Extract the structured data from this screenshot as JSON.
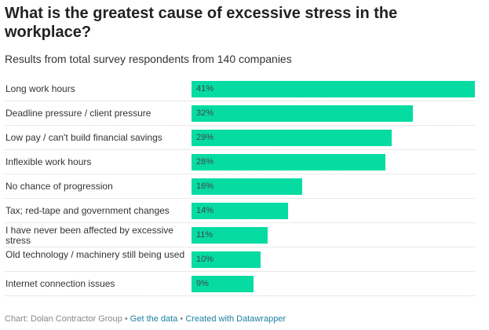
{
  "header": {
    "title": "What is the greatest cause of excessive stress in the workplace?",
    "subtitle": "Results from total survey respondents from 140 companies"
  },
  "footer": {
    "source": "Chart: Dolan Contractor Group",
    "separator": "•",
    "get_data_label": "Get the data",
    "created_with_label": "Created with Datawrapper"
  },
  "colors": {
    "bar": "#06dca2",
    "link": "#1d81a2"
  },
  "chart_data": {
    "type": "bar",
    "orientation": "horizontal",
    "title": "What is the greatest cause of excessive stress in the workplace?",
    "subtitle": "Results from total survey respondents from 140 companies",
    "categories": [
      "Long work hours",
      "Deadline pressure / client pressure",
      "Low pay / can't build financial savings",
      "Inflexible work hours",
      "No chance of progression",
      "Tax; red-tape and government changes",
      "I have never been affected by excessive stress",
      "Old technology / machinery still being used",
      "Internet connection issues"
    ],
    "values": [
      41,
      32,
      29,
      28,
      16,
      14,
      11,
      10,
      9
    ],
    "value_labels": [
      "41%",
      "32%",
      "29%",
      "28%",
      "16%",
      "14%",
      "11%",
      "10%",
      "9%"
    ],
    "unit": "%",
    "xlim": [
      0,
      41
    ],
    "grid": false,
    "legend": "none"
  }
}
